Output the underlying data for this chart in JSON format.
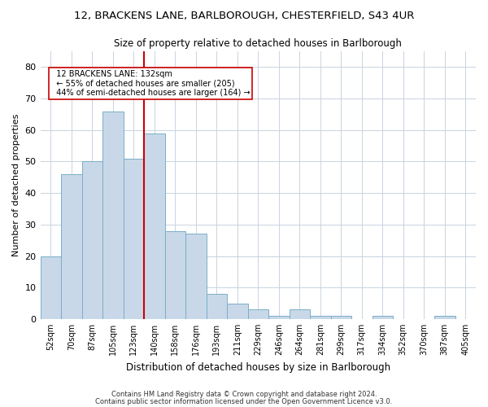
{
  "title_line1": "12, BRACKENS LANE, BARLBOROUGH, CHESTERFIELD, S43 4UR",
  "title_line2": "Size of property relative to detached houses in Barlborough",
  "xlabel": "Distribution of detached houses by size in Barlborough",
  "ylabel": "Number of detached properties",
  "categories": [
    "52sqm",
    "70sqm",
    "87sqm",
    "105sqm",
    "123sqm",
    "140sqm",
    "158sqm",
    "176sqm",
    "193sqm",
    "211sqm",
    "229sqm",
    "246sqm",
    "264sqm",
    "281sqm",
    "299sqm",
    "317sqm",
    "334sqm",
    "352sqm",
    "370sqm",
    "387sqm",
    "405sqm"
  ],
  "values": [
    20,
    46,
    50,
    66,
    51,
    59,
    28,
    27,
    8,
    5,
    3,
    1,
    3,
    1,
    1,
    0,
    1,
    0,
    0,
    1,
    0
  ],
  "bar_color": "#c8d8e8",
  "bar_edge_color": "#7aafc8",
  "grid_color": "#c8d4e0",
  "vline_x": 4.5,
  "vline_color": "#cc0000",
  "annotation_text_line1": "12 BRACKENS LANE: 132sqm",
  "annotation_text_line2": "← 55% of detached houses are smaller (205)",
  "annotation_text_line3": "44% of semi-detached houses are larger (164) →",
  "annotation_box_color": "#ffffff",
  "annotation_box_edge": "#cc0000",
  "ylim": [
    0,
    85
  ],
  "yticks": [
    0,
    10,
    20,
    30,
    40,
    50,
    60,
    70,
    80
  ],
  "footnote1": "Contains HM Land Registry data © Crown copyright and database right 2024.",
  "footnote2": "Contains public sector information licensed under the Open Government Licence v3.0."
}
